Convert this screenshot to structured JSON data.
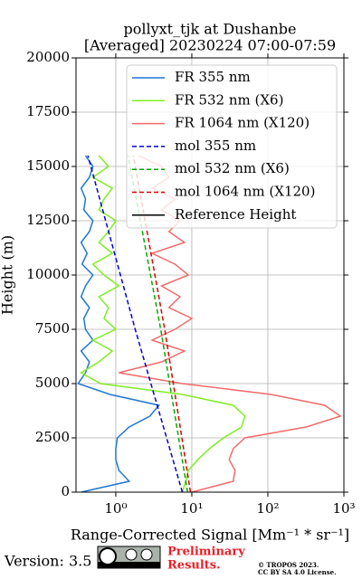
{
  "chart_data": {
    "type": "line",
    "title": [
      "pollyxt_tjk at Dushanbe",
      "[Averaged] 20230224 07:00-07:59"
    ],
    "x_label": "Range-Corrected Signal [Mm⁻¹ * sr⁻¹]",
    "y_label": "Height (m)",
    "x_log": true,
    "grid": true,
    "legend": "upper right",
    "xlim": [
      0.3,
      1000
    ],
    "ylim": [
      0,
      20000
    ],
    "xticks": [
      {
        "value": 1,
        "label": "10⁰"
      },
      {
        "value": 10,
        "label": "10¹"
      },
      {
        "value": 100,
        "label": "10²"
      },
      {
        "value": 1000,
        "label": "10³"
      }
    ],
    "yticks": [
      0,
      2500,
      5000,
      7500,
      10000,
      12500,
      15000,
      17500,
      20000
    ],
    "series": [
      {
        "name": "FR 355 nm",
        "color": "#1f77d4",
        "dash": false,
        "heights": [
          0,
          500,
          1000,
          1500,
          2000,
          2500,
          3000,
          3500,
          4000,
          4500,
          5000,
          5500,
          6000,
          6500,
          7000,
          7500,
          8000,
          8500,
          9000,
          9500,
          10000,
          10500,
          11000,
          11500,
          12000,
          12500,
          13000,
          13500,
          14000,
          14500,
          15000,
          15500
        ],
        "values": [
          0.35,
          1.5,
          1.1,
          1.0,
          1.0,
          1.05,
          1.5,
          2.8,
          3.7,
          0.84,
          0.32,
          0.4,
          0.45,
          0.35,
          0.5,
          0.4,
          0.38,
          0.45,
          0.35,
          0.4,
          0.5,
          0.36,
          0.42,
          0.35,
          0.45,
          0.5,
          0.38,
          0.4,
          0.35,
          0.45,
          0.5,
          0.4
        ]
      },
      {
        "name": "FR 532 nm (X6)",
        "color": "#80ee20",
        "dash": false,
        "heights": [
          0,
          500,
          1000,
          1500,
          2000,
          2500,
          3000,
          3500,
          4000,
          4500,
          5000,
          5500,
          6000,
          6500,
          7000,
          7500,
          8000,
          8500,
          9000,
          9500,
          10000,
          10500,
          11000,
          11500,
          12000,
          12500,
          13000,
          13500,
          14000,
          14500,
          15000,
          15500
        ],
        "values": [
          7.5,
          8.3,
          9,
          12,
          17,
          26,
          45,
          50,
          35,
          7.5,
          0.63,
          0.35,
          0.6,
          0.9,
          0.5,
          1.0,
          0.7,
          0.8,
          0.6,
          1.1,
          0.7,
          0.5,
          0.9,
          0.6,
          0.8,
          1.0,
          0.6,
          0.7,
          0.9,
          0.5,
          0.8,
          0.6
        ]
      },
      {
        "name": "FR 1064 nm (X120)",
        "color": "#f26b6b",
        "dash": false,
        "heights": [
          0,
          500,
          1000,
          1500,
          2000,
          2500,
          3000,
          3500,
          4000,
          4500,
          5000,
          5500,
          6000,
          6500,
          7000,
          7500,
          8000,
          8500,
          9000,
          9500,
          10000,
          10500,
          11000,
          11500,
          12000,
          12500,
          13000,
          13500,
          14000,
          14500,
          15000,
          15500
        ],
        "values": [
          10,
          35,
          37,
          31,
          35,
          50,
          320,
          900,
          560,
          110,
          7.5,
          1.1,
          4,
          8,
          3,
          6,
          10,
          5,
          7,
          4,
          9,
          6,
          3,
          8,
          5,
          7,
          4,
          6,
          3,
          5,
          4,
          2
        ]
      },
      {
        "name": "mol 355 nm",
        "color": "#0000dd",
        "dash": true,
        "heights": [
          0,
          7500,
          15500
        ],
        "values": [
          7.5,
          1.8,
          0.43
        ]
      },
      {
        "name": "mol 532 nm (X6)",
        "color": "#00aa00",
        "dash": true,
        "heights": [
          0,
          7500,
          15500
        ],
        "values": [
          8.8,
          3.9,
          1.45
        ]
      },
      {
        "name": "mol 1064 nm (X120)",
        "color": "#dd0000",
        "dash": true,
        "heights": [
          0,
          7500,
          15500
        ],
        "values": [
          9.6,
          4.4,
          1.7
        ]
      },
      {
        "name": "Reference Height",
        "color": "#000000",
        "dash": false,
        "heights": [],
        "values": []
      }
    ]
  },
  "footer": {
    "version": "Version: 3.5",
    "preliminary": [
      "Preliminary",
      "Results."
    ],
    "copyright": [
      "© TROPOS 2023.",
      "CC BY SA 4.0 License."
    ]
  }
}
